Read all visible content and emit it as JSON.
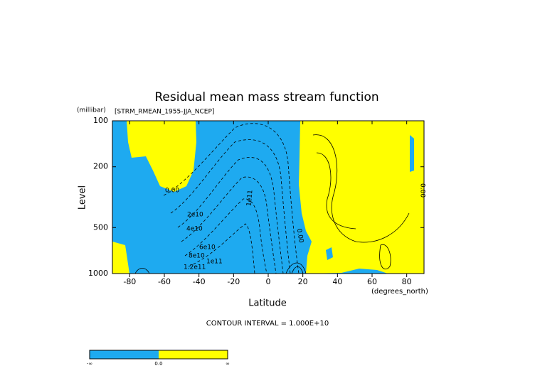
{
  "chart_data": {
    "type": "contour",
    "title": "Residual mean mass stream function",
    "subtitle": "[STRM_RMEAN_1955-JJA_NCEP]",
    "y_units": "(millibar)",
    "x_units": "(degrees_north)",
    "xlabel": "Latitude",
    "ylabel": "Level",
    "xlim": [
      -90,
      90
    ],
    "xticks": [
      -80,
      -60,
      -40,
      -20,
      0,
      20,
      40,
      60,
      80
    ],
    "ylim": [
      1000,
      100
    ],
    "yticks": [
      100,
      200,
      500,
      1000
    ],
    "log_y": true,
    "note": "CONTOUR INTERVAL = 1.000E+10",
    "contour_labels": [
      "0.00",
      "2e10",
      "4e10",
      "6e10",
      "8e10",
      "1e11",
      "1.2e11",
      "1e11",
      "0.00",
      "0.00"
    ],
    "colors": [
      "#1eaaf0",
      "#ffff00"
    ],
    "colorbar_labels": [
      "-∞",
      "0.0",
      "∞"
    ]
  }
}
